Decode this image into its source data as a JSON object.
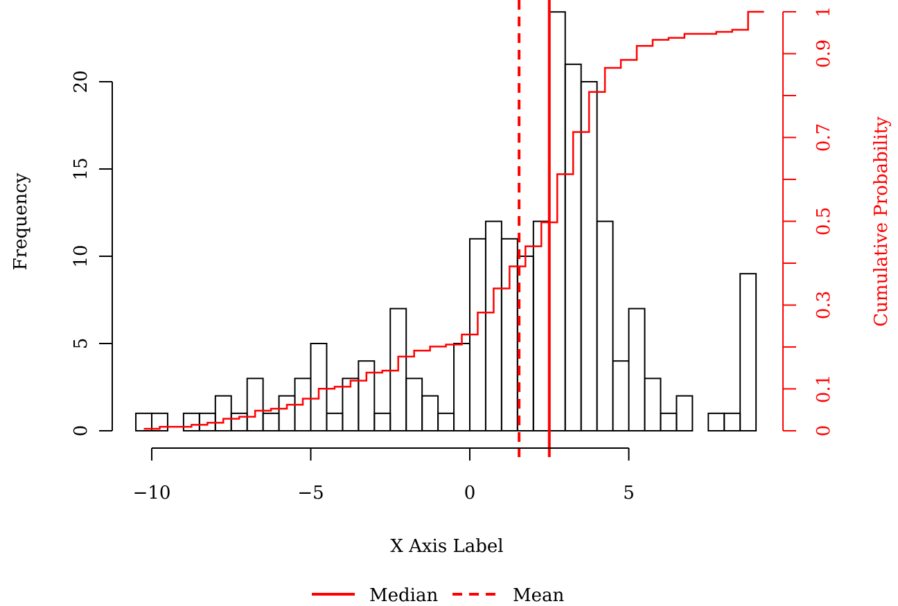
{
  "chart_data": {
    "type": "bar",
    "xlabel": "X Axis Label",
    "ylabel": "Frequency",
    "y2label": "Cumulative Probability",
    "bin_width": 0.5,
    "bin_start": -10.5,
    "values": [
      1,
      1,
      0,
      1,
      1,
      2,
      1,
      3,
      1,
      2,
      3,
      5,
      1,
      3,
      4,
      1,
      7,
      3,
      2,
      1,
      5,
      11,
      12,
      11,
      10,
      12,
      24,
      21,
      20,
      12,
      4,
      7,
      3,
      1,
      2,
      0,
      1,
      1,
      9
    ],
    "xlim": [
      -10.5,
      9
    ],
    "ylim": [
      0,
      20
    ],
    "y2lim": [
      0,
      1
    ],
    "x_ticks": [
      -10,
      -5,
      0,
      5
    ],
    "x_tick_labels": [
      "−10",
      "−5",
      "0",
      "5"
    ],
    "y_ticks": [
      0,
      5,
      10,
      15,
      20
    ],
    "y_tick_labels": [
      "0",
      "5",
      "10",
      "15",
      "20"
    ],
    "y2_ticks": [
      0,
      0.1,
      0.2,
      0.3,
      0.4,
      0.5,
      0.6,
      0.7,
      0.8,
      0.9,
      1
    ],
    "y2_tick_labels": [
      "0",
      "0.1",
      "",
      "0.3",
      "",
      "0.5",
      "",
      "0.7",
      "",
      "0.9",
      "1"
    ],
    "median": 2.5,
    "mean": 1.55,
    "legend": [
      {
        "label": "Median",
        "style": "solid"
      },
      {
        "label": "Mean",
        "style": "dashed"
      }
    ],
    "legend_position": "bottom",
    "colors": {
      "bars": "#000000",
      "accent": "#ff0000"
    }
  }
}
